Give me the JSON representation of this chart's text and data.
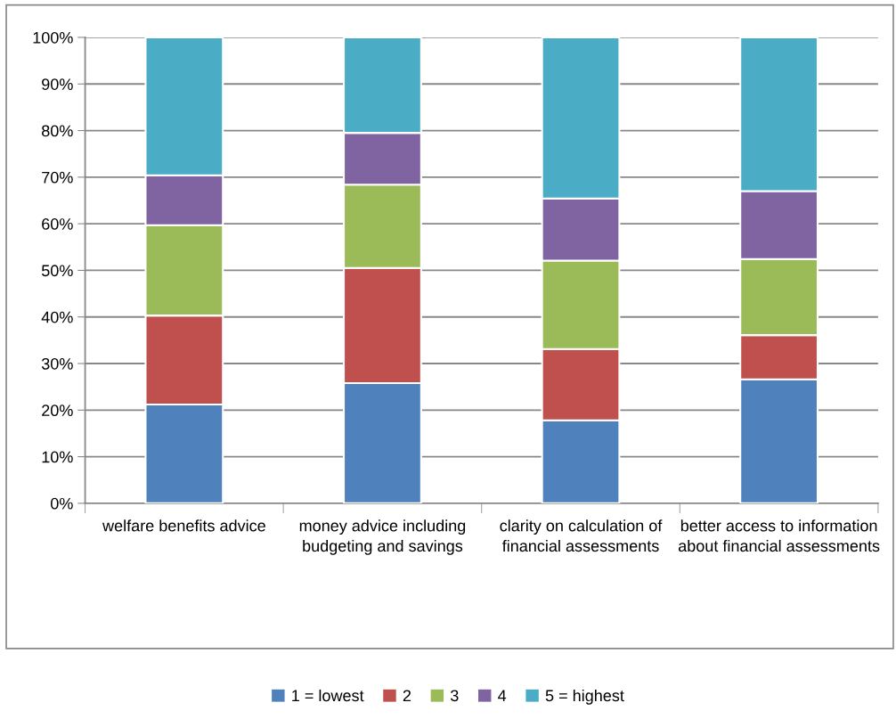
{
  "chart_data": {
    "type": "bar",
    "stacked": true,
    "categories": [
      "welfare benefits advice",
      "money advice including budgeting and savings",
      "clarity on calculation of financial assessments",
      "better access to information about financial assessments"
    ],
    "series": [
      {
        "name": "1 = lowest",
        "color": "#4f81bd",
        "values": [
          21.2,
          25.8,
          17.8,
          26.6
        ]
      },
      {
        "name": "2",
        "color": "#c0504d",
        "values": [
          19.1,
          24.7,
          15.3,
          9.5
        ]
      },
      {
        "name": "3",
        "color": "#9bbb59",
        "values": [
          19.4,
          17.9,
          19.0,
          16.3
        ]
      },
      {
        "name": "4",
        "color": "#8064a2",
        "values": [
          10.7,
          11.1,
          13.3,
          14.6
        ]
      },
      {
        "name": "5 = highest",
        "color": "#4bacc6",
        "values": [
          29.6,
          20.5,
          34.6,
          33.0
        ]
      }
    ],
    "ylim": [
      0,
      100
    ],
    "yticks": [
      {
        "value": 0,
        "label": "0%"
      },
      {
        "value": 10,
        "label": "10%"
      },
      {
        "value": 20,
        "label": "20%"
      },
      {
        "value": 30,
        "label": "30%"
      },
      {
        "value": 40,
        "label": "40%"
      },
      {
        "value": 50,
        "label": "50%"
      },
      {
        "value": 60,
        "label": "60%"
      },
      {
        "value": 70,
        "label": "70%"
      },
      {
        "value": 80,
        "label": "80%"
      },
      {
        "value": 90,
        "label": "90%"
      },
      {
        "value": 100,
        "label": "100%"
      }
    ],
    "grid": "y",
    "legend": "bottom"
  }
}
